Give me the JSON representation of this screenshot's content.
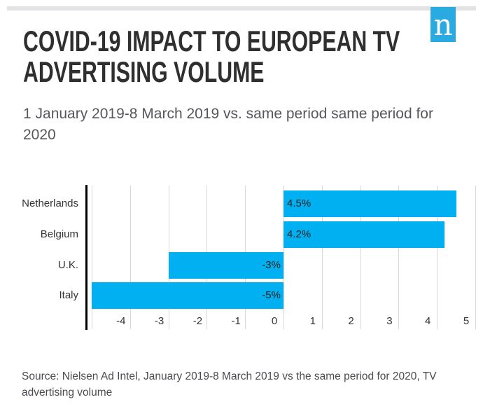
{
  "header": {
    "title": "COVID-19 IMPACT TO EUROPEAN TV ADVERTISING VOLUME",
    "subtitle": "1 January 2019-8 March 2019 vs. same period same period for 2020",
    "logo_letter": "n"
  },
  "chart_data": {
    "type": "bar",
    "orientation": "horizontal",
    "title": "COVID-19 IMPACT TO EUROPEAN TV ADVERTISING VOLUME",
    "subtitle": "1 January 2019-8 March 2019 vs. same period same period for 2020",
    "categories": [
      "Netherlands",
      "Belgium",
      "U.K.",
      "Italy"
    ],
    "values": [
      4.5,
      4.2,
      -3,
      -5
    ],
    "value_labels": [
      "4.5%",
      "4.2%",
      "-3%",
      "-5%"
    ],
    "x_tick_labels": [
      "-4",
      "-3",
      "-2",
      "-1",
      "0",
      "1",
      "2",
      "3",
      "4",
      "5"
    ],
    "x_tick_values": [
      -4,
      -3,
      -2,
      -1,
      0,
      1,
      2,
      3,
      4,
      5
    ],
    "gridline_values": [
      -5,
      -4,
      -3,
      -2,
      -1,
      0,
      1,
      2,
      3,
      4,
      5
    ],
    "xlim": [
      -5.15,
      5.2
    ],
    "grid": true,
    "legend": false,
    "bar_color": "#00b0f0"
  },
  "footer": {
    "source": "Source: Nielsen Ad Intel, January 2019-8 March 2019 vs the same period for 2020, TV advertising volume"
  },
  "colors": {
    "bar": "#00b0f0",
    "logo_bg": "#29abe2",
    "top_bar": "#e3e3e6",
    "title_text": "#2f2f2f",
    "subtitle_text": "#55575c",
    "label_text": "#333333",
    "gridline": "#d8d8d8",
    "axis_line": "#000000",
    "source_text": "#4a4b50"
  }
}
